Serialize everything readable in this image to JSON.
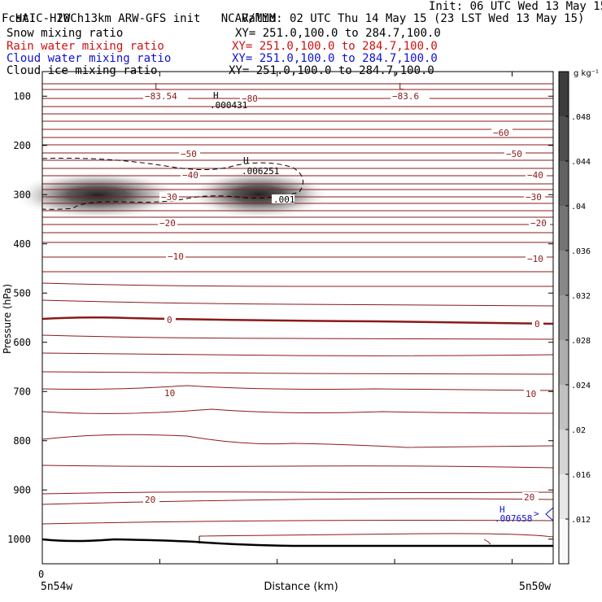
{
  "header": {
    "line1_left": "HAIC-HIWC 13km ARW-GFS init   NCAR/MMM",
    "line1_right": "Init: 06 UTC Wed 13 May 15",
    "fcst_label": "Fcst:   20 h",
    "valid": "Valid: 02 UTC Thu 14 May 15 (23 LST Wed 13 May 15)",
    "fields": [
      {
        "name": "Snow mixing ratio",
        "xy": "XY= 251.0,100.0 to 284.7,100.0",
        "color": "#000000"
      },
      {
        "name": "Rain water mixing ratio",
        "xy": "XY= 251.0,100.0 to 284.7,100.0",
        "color": "#d01010"
      },
      {
        "name": "Cloud water mixing ratio",
        "xy": "XY= 251.0,100.0 to 284.7,100.0",
        "color": "#1010d0"
      },
      {
        "name": "Cloud ice mixing ratio",
        "xy": "XY= 251.0,100.0 to 284.7,100.0",
        "color": "#000000"
      }
    ]
  },
  "chart_data": {
    "type": "heatmap",
    "xlabel": "Distance (km)",
    "ylabel": "Pressure (hPa)",
    "ylim": [
      1050,
      50
    ],
    "y_ticks": [
      100,
      200,
      300,
      400,
      500,
      600,
      700,
      800,
      900,
      1000
    ],
    "x_tick_labels": {
      "start": "0",
      "left_location": "5n54w",
      "right_location": "5n50w"
    },
    "colorbar": {
      "unit": "g kg⁻¹",
      "ticks": [
        ".048",
        ".044",
        ".04",
        ".036",
        ".032",
        ".028",
        ".024",
        ".02",
        ".016",
        ".012"
      ],
      "min": 0.008,
      "max": 0.052
    },
    "temperature_contour_labels": [
      {
        "text": "−83.54",
        "pressure": 118
      },
      {
        "text": "−83.6",
        "pressure": 118
      },
      {
        "text": "−80",
        "pressure": 109
      },
      {
        "text": "−60",
        "pressure": 173
      },
      {
        "text": "−50",
        "pressure": 215
      },
      {
        "text": "−40",
        "pressure": 262
      },
      {
        "text": "−30",
        "pressure": 303
      },
      {
        "text": "−20",
        "pressure": 344
      },
      {
        "text": "−10",
        "pressure": 431
      },
      {
        "text": "0",
        "pressure": 556
      },
      {
        "text": "10",
        "pressure": 736
      },
      {
        "text": "20",
        "pressure": 912
      }
    ],
    "extrema_labels": [
      {
        "symbol": "L",
        "color": "#8b1a1a",
        "pressure": 91
      },
      {
        "symbol": "L",
        "color": "#8b1a1a",
        "pressure": 91
      },
      {
        "symbol": "H",
        "value": ".000431",
        "color": "#000000",
        "pressure": 100
      },
      {
        "symbol": "H",
        "value": ".006251",
        "color": "#000000",
        "pressure": 232
      },
      {
        "symbol": "H",
        "value": ".007658",
        "color": "#1010d0",
        "pressure": 945
      }
    ],
    "contour_value_label": ".001",
    "snow_maxima": [
      {
        "position": "left",
        "pressure_center": 295,
        "max_value": 0.05
      },
      {
        "position": "middle",
        "pressure_center": 295,
        "max_value": 0.052
      }
    ]
  }
}
